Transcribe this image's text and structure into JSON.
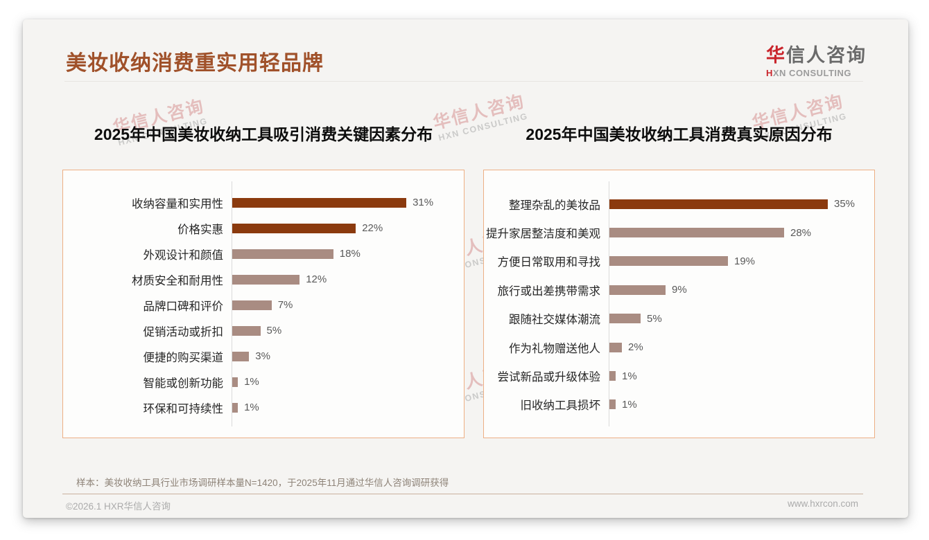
{
  "page": {
    "title": "美妆收纳消费重实用轻品牌",
    "logo": {
      "brand_first": "华",
      "brand_rest": "信人咨询",
      "sub_first": "H",
      "sub_rest": "XN CONSULTING"
    },
    "watermark": {
      "line1": "华信人咨询",
      "line2": "HXN CONSULTING"
    },
    "note_label": "样本：",
    "note_text": "美妆收纳工具行业市场调研样本量N=1420，于2025年11月通过华信人咨询调研获得",
    "footer_left": "©2026.1 HXR华信人咨询",
    "footer_right": "www.hxrcon.com"
  },
  "colors": {
    "title": "#A0512A",
    "logo_red": "#C9242B",
    "bar_dark": "#8B3A0E",
    "bar_light": "#A98C82",
    "panel_border": "#EDAF84",
    "value_text": "#595959"
  },
  "chart_data": [
    {
      "type": "bar",
      "orientation": "horizontal",
      "title": "2025年中国美妆收纳工具吸引消费关键因素分布",
      "categories": [
        "收纳容量和实用性",
        "价格实惠",
        "外观设计和颜值",
        "材质安全和耐用性",
        "品牌口碑和评价",
        "促销活动或折扣",
        "便捷的购买渠道",
        "智能或创新功能",
        "环保和可持续性"
      ],
      "values": [
        31,
        22,
        18,
        12,
        7,
        5,
        3,
        1,
        1
      ],
      "value_suffix": "%",
      "highlight_count": 2,
      "xlim": [
        0,
        35
      ],
      "grid": false,
      "legend": false
    },
    {
      "type": "bar",
      "orientation": "horizontal",
      "title": "2025年中国美妆收纳工具消费真实原因分布",
      "categories": [
        "整理杂乱的美妆品",
        "提升家居整洁度和美观",
        "方便日常取用和寻找",
        "旅行或出差携带需求",
        "跟随社交媒体潮流",
        "作为礼物赠送他人",
        "尝试新品或升级体验",
        "旧收纳工具损坏"
      ],
      "values": [
        35,
        28,
        19,
        9,
        5,
        2,
        1,
        1
      ],
      "value_suffix": "%",
      "highlight_count": 1,
      "xlim": [
        0,
        38
      ],
      "grid": false,
      "legend": false
    }
  ]
}
